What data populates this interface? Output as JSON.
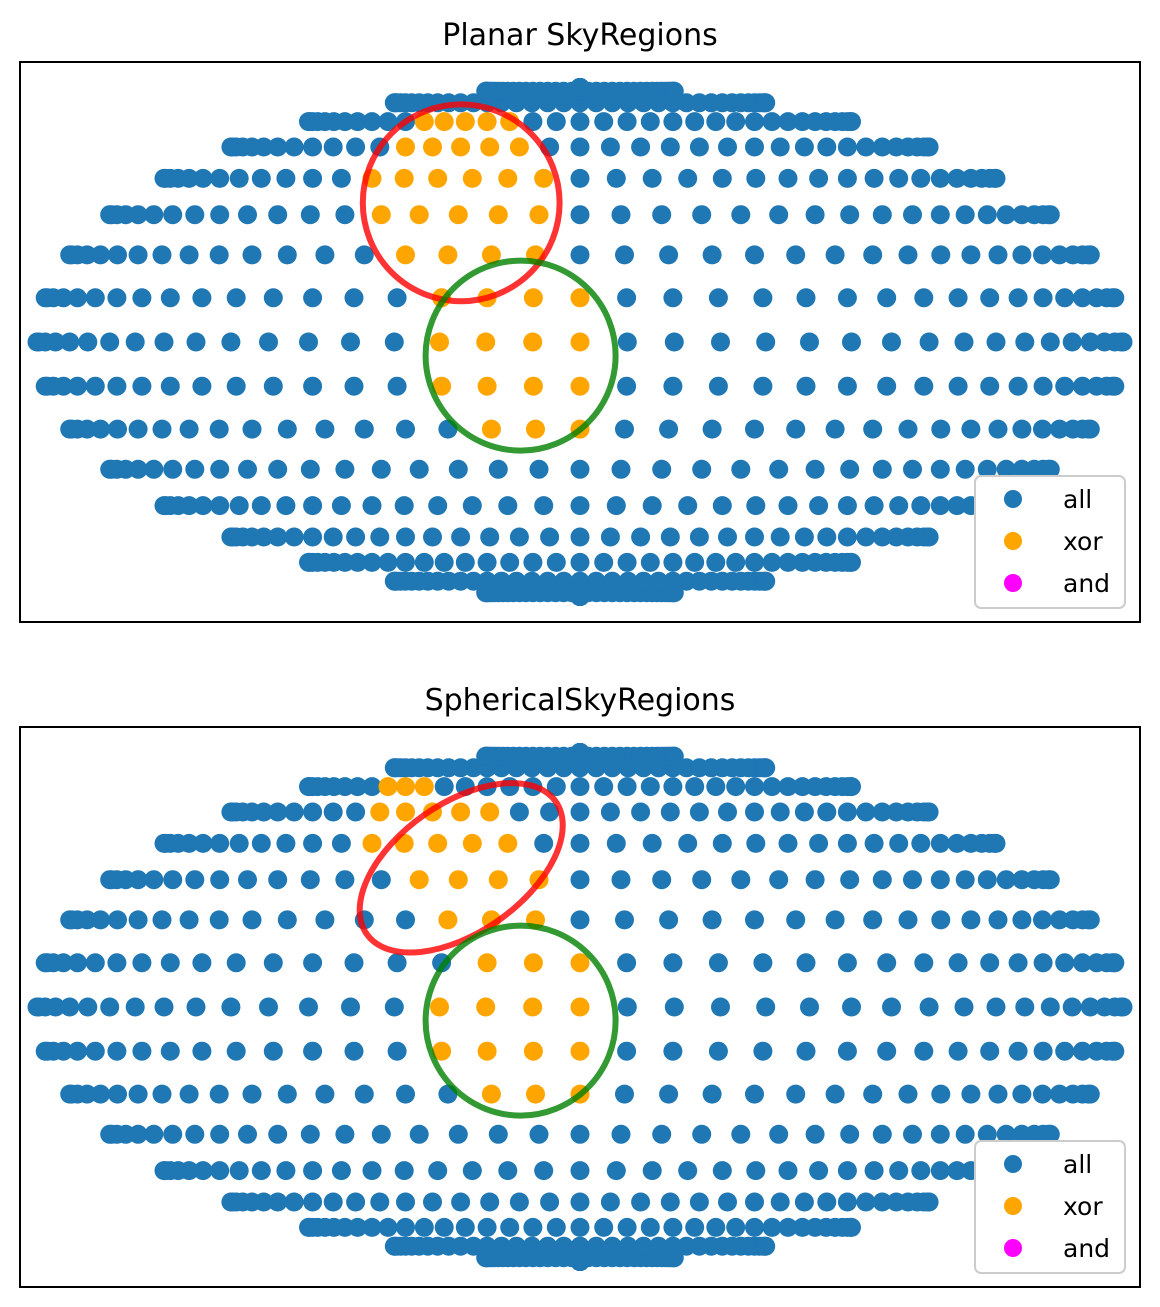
{
  "chart_data": [
    {
      "type": "scatter",
      "title": "Planar SkyRegions",
      "xlabel": "",
      "ylabel": "",
      "ticks": "none",
      "grid": false,
      "legend_placement": "lower-right",
      "xlim": [
        -3.3,
        3.3
      ],
      "ylim": [
        -1.65,
        1.65
      ],
      "series": [
        {
          "name": "all",
          "color": "#1f77b4"
        },
        {
          "name": "xor",
          "color": "#ffa500"
        },
        {
          "name": "and",
          "color": "#ff00ff"
        }
      ],
      "grid_points": {
        "lat_step_deg": 10,
        "lon_step_deg": 10,
        "projection": "elliptical"
      },
      "regions": [
        {
          "shape": "planar-circle",
          "center": [
            -0.7,
            0.82
          ],
          "radius": 0.58,
          "color": "#ff0000"
        },
        {
          "shape": "planar-circle",
          "center": [
            -0.35,
            -0.08
          ],
          "radius": 0.56,
          "color": "#008000"
        }
      ]
    },
    {
      "type": "scatter",
      "title": "SphericalSkyRegions",
      "xlabel": "",
      "ylabel": "",
      "ticks": "none",
      "grid": false,
      "legend_placement": "lower-right",
      "xlim": [
        -3.3,
        3.3
      ],
      "ylim": [
        -1.65,
        1.65
      ],
      "series": [
        {
          "name": "all",
          "color": "#1f77b4"
        },
        {
          "name": "xor",
          "color": "#ffa500"
        },
        {
          "name": "and",
          "color": "#ff00ff"
        }
      ],
      "grid_points": {
        "lat_step_deg": 10,
        "lon_step_deg": 10,
        "projection": "elliptical"
      },
      "regions": [
        {
          "shape": "spherical-ellipse",
          "center": [
            -0.7,
            0.82
          ],
          "rx": 0.68,
          "ry": 0.38,
          "rotation_deg": -35,
          "color": "#ff0000"
        },
        {
          "shape": "planar-circle",
          "center": [
            -0.35,
            -0.08
          ],
          "radius": 0.56,
          "color": "#008000"
        }
      ]
    }
  ]
}
